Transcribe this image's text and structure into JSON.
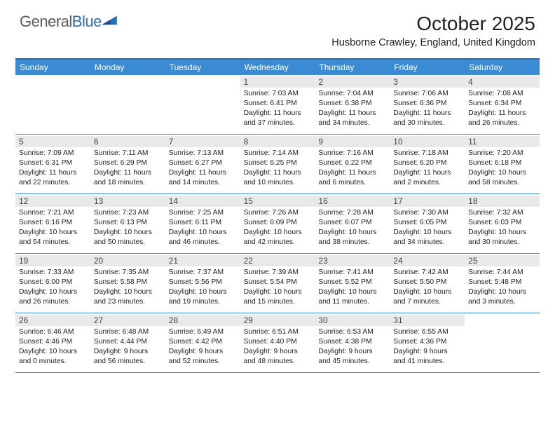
{
  "logo": {
    "textGray": "General",
    "textBlue": "Blue"
  },
  "header": {
    "monthTitle": "October 2025",
    "location": "Husborne Crawley, England, United Kingdom"
  },
  "colors": {
    "headerBar": "#3b8bd4",
    "topRule": "#2a6db8",
    "dayBarBg": "#e9e9e9",
    "text": "#222222"
  },
  "dayNames": [
    "Sunday",
    "Monday",
    "Tuesday",
    "Wednesday",
    "Thursday",
    "Friday",
    "Saturday"
  ],
  "weeks": [
    [
      {
        "empty": true
      },
      {
        "empty": true
      },
      {
        "empty": true
      },
      {
        "n": "1",
        "sr": "7:03 AM",
        "ss": "6:41 PM",
        "dl": "11 hours and 37 minutes."
      },
      {
        "n": "2",
        "sr": "7:04 AM",
        "ss": "6:38 PM",
        "dl": "11 hours and 34 minutes."
      },
      {
        "n": "3",
        "sr": "7:06 AM",
        "ss": "6:36 PM",
        "dl": "11 hours and 30 minutes."
      },
      {
        "n": "4",
        "sr": "7:08 AM",
        "ss": "6:34 PM",
        "dl": "11 hours and 26 minutes."
      }
    ],
    [
      {
        "n": "5",
        "sr": "7:09 AM",
        "ss": "6:31 PM",
        "dl": "11 hours and 22 minutes."
      },
      {
        "n": "6",
        "sr": "7:11 AM",
        "ss": "6:29 PM",
        "dl": "11 hours and 18 minutes."
      },
      {
        "n": "7",
        "sr": "7:13 AM",
        "ss": "6:27 PM",
        "dl": "11 hours and 14 minutes."
      },
      {
        "n": "8",
        "sr": "7:14 AM",
        "ss": "6:25 PM",
        "dl": "11 hours and 10 minutes."
      },
      {
        "n": "9",
        "sr": "7:16 AM",
        "ss": "6:22 PM",
        "dl": "11 hours and 6 minutes."
      },
      {
        "n": "10",
        "sr": "7:18 AM",
        "ss": "6:20 PM",
        "dl": "11 hours and 2 minutes."
      },
      {
        "n": "11",
        "sr": "7:20 AM",
        "ss": "6:18 PM",
        "dl": "10 hours and 58 minutes."
      }
    ],
    [
      {
        "n": "12",
        "sr": "7:21 AM",
        "ss": "6:16 PM",
        "dl": "10 hours and 54 minutes."
      },
      {
        "n": "13",
        "sr": "7:23 AM",
        "ss": "6:13 PM",
        "dl": "10 hours and 50 minutes."
      },
      {
        "n": "14",
        "sr": "7:25 AM",
        "ss": "6:11 PM",
        "dl": "10 hours and 46 minutes."
      },
      {
        "n": "15",
        "sr": "7:26 AM",
        "ss": "6:09 PM",
        "dl": "10 hours and 42 minutes."
      },
      {
        "n": "16",
        "sr": "7:28 AM",
        "ss": "6:07 PM",
        "dl": "10 hours and 38 minutes."
      },
      {
        "n": "17",
        "sr": "7:30 AM",
        "ss": "6:05 PM",
        "dl": "10 hours and 34 minutes."
      },
      {
        "n": "18",
        "sr": "7:32 AM",
        "ss": "6:03 PM",
        "dl": "10 hours and 30 minutes."
      }
    ],
    [
      {
        "n": "19",
        "sr": "7:33 AM",
        "ss": "6:00 PM",
        "dl": "10 hours and 26 minutes."
      },
      {
        "n": "20",
        "sr": "7:35 AM",
        "ss": "5:58 PM",
        "dl": "10 hours and 23 minutes."
      },
      {
        "n": "21",
        "sr": "7:37 AM",
        "ss": "5:56 PM",
        "dl": "10 hours and 19 minutes."
      },
      {
        "n": "22",
        "sr": "7:39 AM",
        "ss": "5:54 PM",
        "dl": "10 hours and 15 minutes."
      },
      {
        "n": "23",
        "sr": "7:41 AM",
        "ss": "5:52 PM",
        "dl": "10 hours and 11 minutes."
      },
      {
        "n": "24",
        "sr": "7:42 AM",
        "ss": "5:50 PM",
        "dl": "10 hours and 7 minutes."
      },
      {
        "n": "25",
        "sr": "7:44 AM",
        "ss": "5:48 PM",
        "dl": "10 hours and 3 minutes."
      }
    ],
    [
      {
        "n": "26",
        "sr": "6:46 AM",
        "ss": "4:46 PM",
        "dl": "10 hours and 0 minutes."
      },
      {
        "n": "27",
        "sr": "6:48 AM",
        "ss": "4:44 PM",
        "dl": "9 hours and 56 minutes."
      },
      {
        "n": "28",
        "sr": "6:49 AM",
        "ss": "4:42 PM",
        "dl": "9 hours and 52 minutes."
      },
      {
        "n": "29",
        "sr": "6:51 AM",
        "ss": "4:40 PM",
        "dl": "9 hours and 48 minutes."
      },
      {
        "n": "30",
        "sr": "6:53 AM",
        "ss": "4:38 PM",
        "dl": "9 hours and 45 minutes."
      },
      {
        "n": "31",
        "sr": "6:55 AM",
        "ss": "4:36 PM",
        "dl": "9 hours and 41 minutes."
      },
      {
        "empty": true
      }
    ]
  ],
  "labels": {
    "sunrise": "Sunrise: ",
    "sunset": "Sunset: ",
    "daylight": "Daylight: "
  }
}
